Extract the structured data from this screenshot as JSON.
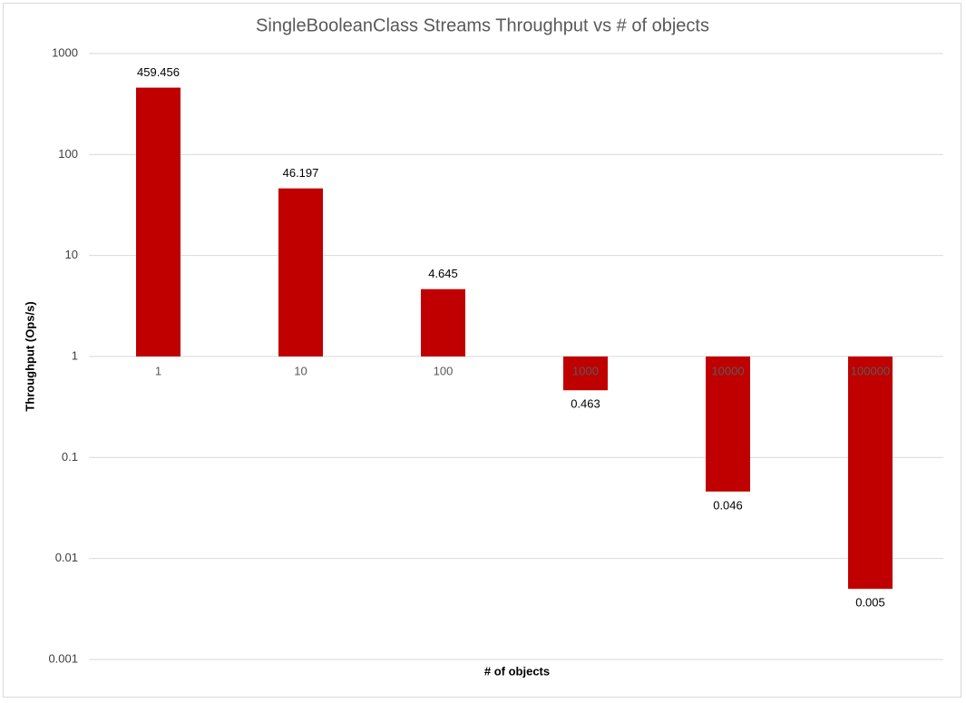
{
  "chart_data": {
    "type": "bar",
    "title": "SingleBooleanClass Streams Throughput vs # of objects",
    "x_label": "# of objects",
    "y_label": "Throughput (Ops/s)",
    "categories": [
      "1",
      "10",
      "100",
      "1000",
      "10000",
      "100000"
    ],
    "values": [
      459.456,
      46.197,
      4.645,
      0.463,
      0.046,
      0.005
    ],
    "color": "#c00000",
    "log_scale": true,
    "ylim": [
      0.001,
      1000
    ],
    "yticks": [
      0.001,
      0.01,
      0.1,
      1,
      10,
      100,
      1000
    ],
    "grid": true
  }
}
